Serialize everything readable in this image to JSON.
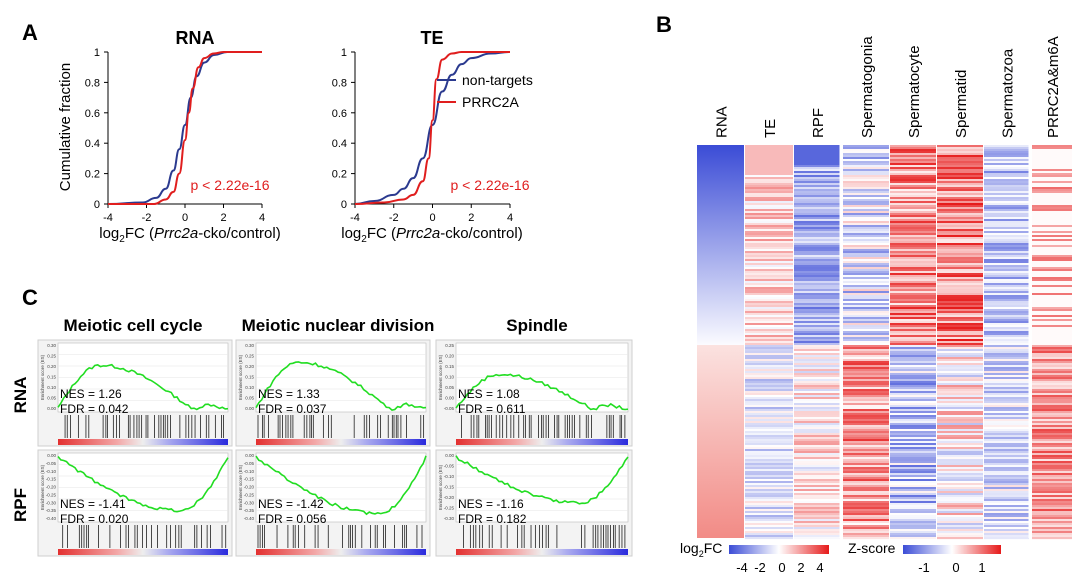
{
  "panels": {
    "a": "A",
    "b": "B",
    "c": "C"
  },
  "colors": {
    "blue": "#2b3a8f",
    "red": "#e01e1e",
    "green": "#22dd22",
    "heat_low": "#3b4cd6",
    "heat_mid": "#ffffff",
    "heat_high": "#e61a1a"
  },
  "chart_data": [
    {
      "type": "line",
      "title": "RNA",
      "ylabel": "Cumulative fraction",
      "xlabel": "log2FC (Prrc2a-cko/control)",
      "xlim": [
        -4,
        4
      ],
      "ylim": [
        0,
        1
      ],
      "x_ticks": [
        "-4",
        "-2",
        "0",
        "2",
        "4"
      ],
      "y_ticks": [
        "0",
        "0.2",
        "0.4",
        "0.6",
        "0.8",
        "1"
      ],
      "annotation": "p < 2.22e-16",
      "series": [
        {
          "name": "non-targets",
          "x": [
            -4,
            -2.2,
            -1.5,
            -1.0,
            -0.6,
            -0.3,
            0,
            0.3,
            0.6,
            1.0,
            1.5,
            2.2,
            4
          ],
          "y": [
            0,
            0.01,
            0.04,
            0.1,
            0.22,
            0.36,
            0.52,
            0.7,
            0.84,
            0.93,
            0.98,
            1.0,
            1.0
          ]
        },
        {
          "name": "PRRC2A",
          "x": [
            -4,
            -1.6,
            -1.0,
            -0.6,
            -0.3,
            0,
            0.2,
            0.4,
            0.7,
            1.0,
            1.5,
            2.0,
            4
          ],
          "y": [
            0,
            0.0,
            0.03,
            0.08,
            0.2,
            0.42,
            0.6,
            0.76,
            0.9,
            0.96,
            0.99,
            1.0,
            1.0
          ]
        }
      ]
    },
    {
      "type": "line",
      "title": "TE",
      "xlabel": "log2FC (Prrc2a-cko/control)",
      "xlim": [
        -4,
        4
      ],
      "ylim": [
        0,
        1
      ],
      "x_ticks": [
        "-4",
        "-2",
        "0",
        "2",
        "4"
      ],
      "y_ticks": [
        "0",
        "0.2",
        "0.4",
        "0.6",
        "0.8",
        "1"
      ],
      "annotation": "p < 2.22e-16",
      "legend": [
        "non-targets",
        "PRRC2A"
      ],
      "series": [
        {
          "name": "non-targets",
          "x": [
            -4,
            -3,
            -2,
            -1.5,
            -1.0,
            -0.5,
            0,
            0.5,
            1.0,
            1.5,
            2.0,
            3.0,
            4
          ],
          "y": [
            0,
            0.02,
            0.06,
            0.1,
            0.17,
            0.3,
            0.52,
            0.74,
            0.85,
            0.92,
            0.96,
            0.99,
            1.0
          ]
        },
        {
          "name": "PRRC2A",
          "x": [
            -4,
            -2.5,
            -1.5,
            -1.0,
            -0.5,
            -0.2,
            0,
            0.2,
            0.5,
            1.0,
            1.5,
            2.5,
            4
          ],
          "y": [
            0,
            0.01,
            0.03,
            0.06,
            0.15,
            0.3,
            0.55,
            0.82,
            0.95,
            0.99,
            1.0,
            1.0,
            1.0
          ]
        }
      ]
    },
    {
      "type": "heatmap",
      "columns": [
        "RNA",
        "TE",
        "RPF",
        "Spermatogonia",
        "Spermatocyte",
        "Spermatid",
        "Spermatozoa",
        "PRRC2A&m6A"
      ],
      "legend_log2fc": {
        "label": "log2FC",
        "ticks": [
          "-4",
          "-2",
          "0",
          "2",
          "4"
        ]
      },
      "legend_zscore": {
        "label": "Z-score",
        "ticks": [
          "-1",
          "0",
          "1"
        ]
      }
    },
    {
      "type": "line",
      "description_free": true,
      "column_titles": [
        "Meiotic cell cycle",
        "Meiotic nuclear division",
        "Spindle"
      ],
      "row_labels": [
        "RNA",
        "RPF"
      ],
      "ylabel": "Enrichment score (ES)",
      "cells": [
        {
          "row": "RNA",
          "col": "Meiotic cell cycle",
          "nes": "NES = 1.26",
          "fdr": "FDR = 0.042",
          "peak": 0.28,
          "y_ticks": [
            "0.30",
            "0.25",
            "0.20",
            "0.15",
            "0.10",
            "0.05",
            "0.00"
          ]
        },
        {
          "row": "RNA",
          "col": "Meiotic nuclear division",
          "nes": "NES = 1.33",
          "fdr": "FDR = 0.037",
          "peak": 0.3,
          "y_ticks": [
            "0.30",
            "0.25",
            "0.20",
            "0.15",
            "0.10",
            "0.05",
            "0.00"
          ]
        },
        {
          "row": "RNA",
          "col": "Spindle",
          "nes": "NES = 1.08",
          "fdr": "FDR = 0.611",
          "peak": 0.22,
          "y_ticks": [
            "0.25",
            "0.20",
            "0.15",
            "0.10",
            "0.05",
            "0.00",
            "-0.05"
          ]
        },
        {
          "row": "RPF",
          "col": "Meiotic cell cycle",
          "nes": "NES = -1.41",
          "fdr": "FDR = 0.020",
          "peak": -0.35,
          "y_ticks": [
            "0.00",
            "-0.05",
            "-0.10",
            "-0.15",
            "-0.20",
            "-0.25",
            "-0.30",
            "-0.35",
            "-0.40"
          ]
        },
        {
          "row": "RPF",
          "col": "Meiotic nuclear division",
          "nes": "NES = -1.42",
          "fdr": "FDR = 0.056",
          "peak": -0.37,
          "y_ticks": [
            "0.00",
            "-0.05",
            "-0.10",
            "-0.15",
            "-0.20",
            "-0.25",
            "-0.30",
            "-0.35",
            "-0.40"
          ]
        },
        {
          "row": "RPF",
          "col": "Spindle",
          "nes": "NES = -1.16",
          "fdr": "FDR = 0.182",
          "peak": -0.3,
          "y_ticks": [
            "0.00",
            "-0.05",
            "-0.10",
            "-0.15",
            "-0.20",
            "-0.25",
            "-0.30"
          ]
        }
      ]
    }
  ],
  "text": {
    "rna_title": "RNA",
    "te_title": "TE",
    "ylabel_cdf": "Cumulative fraction",
    "xlabel_log2": "log",
    "xlabel_sub": "2",
    "xlabel_fc": "FC (",
    "xlabel_gene": "Prrc2a",
    "xlabel_rest": "-cko/control)",
    "legend_nt": "non-targets",
    "legend_prrc2a": "PRRC2A",
    "pval": "p < 2.22e-16",
    "legend_log2fc_a": "log",
    "legend_log2fc_sub": "2",
    "legend_log2fc_b": "FC",
    "legend_zscore": "Z-score"
  }
}
